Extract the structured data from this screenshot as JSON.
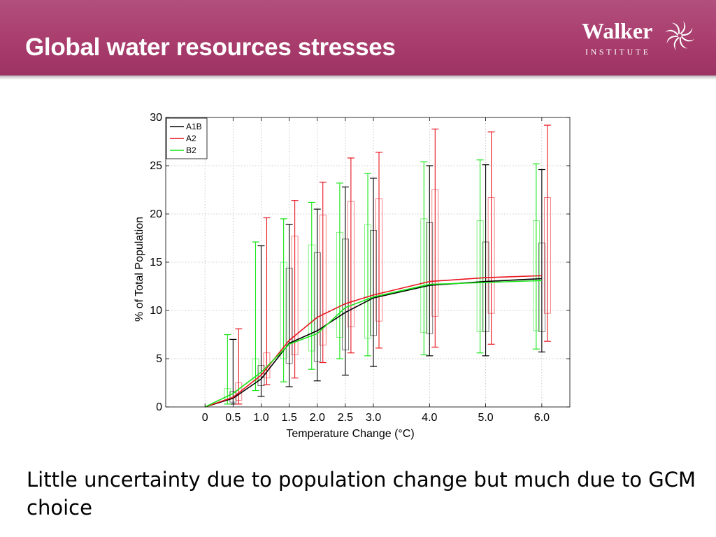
{
  "slide": {
    "title": "Global water resources stresses",
    "caption": "Little uncertainty due to population change but much due to GCM choice"
  },
  "logo": {
    "wordmark": "Walker",
    "subtitle": "INSTITUTE",
    "icon": "swirl-star-icon"
  },
  "colors": {
    "header": "#a93d6d",
    "A1B": "#000000",
    "A2": "#e8141e",
    "B2": "#19e619"
  },
  "chart_data": {
    "type": "line",
    "xlabel": "Temperature Change (°C)",
    "ylabel": "% of Total Population",
    "xlim": [
      -0.7,
      6.5
    ],
    "ylim": [
      0,
      30
    ],
    "x_ticks": [
      0,
      0.5,
      1.0,
      1.5,
      2.0,
      2.5,
      3.0,
      4.0,
      5.0,
      6.0
    ],
    "x_tick_labels": [
      "0",
      "0.5",
      "1.0",
      "1.5",
      "2.0",
      "2.5",
      "3.0",
      "4.0",
      "5.0",
      "6.0"
    ],
    "y_ticks": [
      0,
      5,
      10,
      15,
      20,
      25,
      30
    ],
    "grid": true,
    "legend": "top-left",
    "series": [
      {
        "name": "A1B",
        "x": [
          0,
          0.5,
          1.0,
          1.5,
          2.0,
          2.5,
          3.0,
          4.0,
          5.0,
          6.0
        ],
        "values": [
          0,
          0.9,
          2.9,
          6.6,
          7.9,
          9.8,
          11.3,
          12.6,
          13.0,
          13.3
        ],
        "whisker_low": [
          0,
          0.3,
          1.1,
          2.1,
          2.7,
          3.3,
          4.2,
          5.3,
          5.3,
          5.7
        ],
        "whisker_high": [
          0,
          7.0,
          16.7,
          18.9,
          20.5,
          22.8,
          23.7,
          25.0,
          25.1,
          24.6
        ],
        "box_low": [
          0,
          0.5,
          2.2,
          4.5,
          4.7,
          5.9,
          7.4,
          7.6,
          7.8,
          7.8
        ],
        "box_high": [
          0,
          1.6,
          4.3,
          14.4,
          16.0,
          17.4,
          18.3,
          19.1,
          17.1,
          17.0
        ]
      },
      {
        "name": "A2",
        "x": [
          0,
          0.5,
          1.0,
          1.5,
          2.0,
          2.5,
          3.0,
          4.0,
          5.0,
          6.0
        ],
        "values": [
          0,
          1.0,
          3.3,
          6.9,
          9.3,
          10.7,
          11.6,
          13.0,
          13.4,
          13.6
        ],
        "whisker_low": [
          0,
          0.3,
          2.3,
          3.0,
          4.6,
          5.6,
          6.1,
          6.2,
          6.5,
          6.8
        ],
        "whisker_high": [
          0,
          8.1,
          19.6,
          21.4,
          23.3,
          25.8,
          26.4,
          28.8,
          28.5,
          29.2
        ],
        "box_low": [
          0,
          0.7,
          3.0,
          5.4,
          6.4,
          8.3,
          8.9,
          9.4,
          9.7,
          9.7
        ],
        "box_high": [
          0,
          2.5,
          5.6,
          17.7,
          19.9,
          21.3,
          21.6,
          22.5,
          21.7,
          21.7
        ]
      },
      {
        "name": "B2",
        "x": [
          0,
          0.5,
          1.0,
          1.5,
          2.0,
          2.5,
          3.0,
          4.0,
          5.0,
          6.0
        ],
        "values": [
          0,
          1.4,
          3.6,
          6.5,
          7.6,
          10.3,
          11.4,
          12.7,
          12.9,
          13.1
        ],
        "whisker_low": [
          0,
          0.3,
          1.7,
          2.6,
          3.9,
          5.0,
          5.3,
          5.4,
          5.6,
          6.0
        ],
        "whisker_high": [
          0,
          7.5,
          17.1,
          19.5,
          21.2,
          23.2,
          24.2,
          25.4,
          25.6,
          25.2
        ],
        "box_low": [
          0,
          0.8,
          2.8,
          5.0,
          5.8,
          7.2,
          7.1,
          7.7,
          7.8,
          7.9
        ],
        "box_high": [
          0,
          1.9,
          5.0,
          15.0,
          16.8,
          18.1,
          18.9,
          19.5,
          19.3,
          19.3
        ]
      }
    ]
  }
}
